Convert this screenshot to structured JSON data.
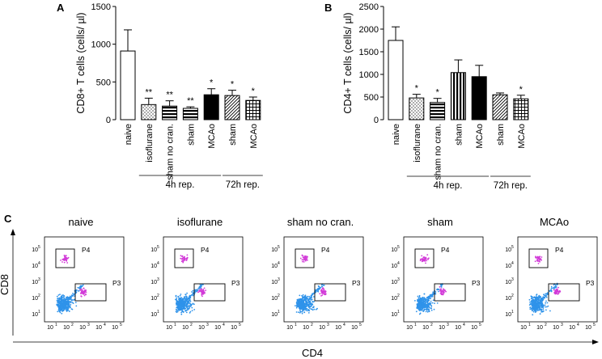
{
  "chart_data": [
    {
      "panel": "A",
      "type": "bar",
      "ylabel": "CD8+ T cells (cells/ µl)",
      "ylim": [
        0,
        1500
      ],
      "yticks": [
        "0",
        "500",
        "1000",
        "1500"
      ],
      "categories": [
        "naive",
        "isoflurane",
        "sham no cran.",
        "sham",
        "MCAo",
        "sham",
        "MCAo"
      ],
      "values": [
        910,
        200,
        180,
        150,
        330,
        320,
        255
      ],
      "errors": [
        280,
        85,
        70,
        20,
        80,
        70,
        45
      ],
      "patterns": [
        "white",
        "dots",
        "hstripe",
        "hstripe",
        "black",
        "diag",
        "grid"
      ],
      "significance": [
        "",
        "**",
        "**",
        "**",
        "*",
        "*",
        "*"
      ],
      "groups": [
        {
          "label": "4h rep.",
          "start": 1,
          "end": 4
        },
        {
          "label": "72h rep.",
          "start": 5,
          "end": 6
        }
      ]
    },
    {
      "panel": "B",
      "type": "bar",
      "ylabel": "CD4+ T cells (cells/ µl)",
      "ylim": [
        0,
        2500
      ],
      "yticks": [
        "0",
        "500",
        "1000",
        "1500",
        "2000",
        "2500"
      ],
      "categories": [
        "naive",
        "isoflurane",
        "sham no cran.",
        "sham",
        "MCAo",
        "sham",
        "MCAo"
      ],
      "values": [
        1750,
        480,
        380,
        1040,
        950,
        550,
        460
      ],
      "errors": [
        300,
        80,
        90,
        280,
        250,
        40,
        80
      ],
      "patterns": [
        "white",
        "dots",
        "hstripe",
        "vstripe",
        "black",
        "diag",
        "grid"
      ],
      "significance": [
        "",
        "*",
        "*",
        "",
        "",
        "",
        "*"
      ],
      "groups": [
        {
          "label": "4h rep.",
          "start": 1,
          "end": 4
        },
        {
          "label": "72h rep.",
          "start": 5,
          "end": 6
        }
      ]
    },
    {
      "panel": "C",
      "type": "scatter",
      "xlabel": "CD4",
      "ylabel": "CD8",
      "tick_labels": [
        "10",
        "10",
        "10",
        "10",
        "10"
      ],
      "tick_exponents": [
        "1",
        "2",
        "3",
        "4",
        "5"
      ],
      "plots": [
        {
          "title": "naive",
          "gates": [
            "P4",
            "P3"
          ]
        },
        {
          "title": "isoflurane",
          "gates": [
            "P4",
            "P3"
          ]
        },
        {
          "title": "sham no cran.",
          "gates": [
            "P4",
            "P3"
          ]
        },
        {
          "title": "sham",
          "gates": [
            "P4",
            "P3"
          ]
        },
        {
          "title": "MCAo",
          "gates": [
            "P4",
            "P3"
          ]
        }
      ]
    }
  ],
  "colors": {
    "cd4_dots": "#2f93ea",
    "cd8_dots": "#d23bd8",
    "ink": "#000000"
  }
}
